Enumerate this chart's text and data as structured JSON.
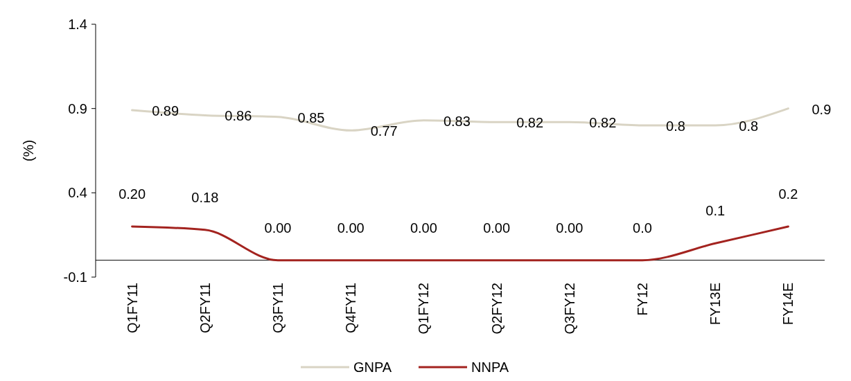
{
  "chart_data": {
    "type": "line",
    "ylabel": "(%)",
    "categories": [
      "Q1FY11",
      "Q2FY11",
      "Q3FY11",
      "Q4FY11",
      "Q1FY12",
      "Q2FY12",
      "Q3FY12",
      "FY12",
      "FY13E",
      "FY14E"
    ],
    "series": [
      {
        "name": "GNPA",
        "color": "#d9d4c4",
        "values": [
          0.89,
          0.86,
          0.85,
          0.77,
          0.83,
          0.82,
          0.82,
          0.8,
          0.8,
          0.9
        ],
        "value_labels": [
          "0.89",
          "0.86",
          "0.85",
          "0.77",
          "0.83",
          "0.82",
          "0.82",
          "0.8",
          "0.8",
          "0.9"
        ]
      },
      {
        "name": "NNPA",
        "color": "#a3231f",
        "values": [
          0.2,
          0.18,
          0,
          0,
          0,
          0,
          0,
          0,
          0.1,
          0.2
        ],
        "value_labels": [
          "0.20",
          "0.18",
          "0.00",
          "0.00",
          "0.00",
          "0.00",
          "0.00",
          "0.0",
          "0.1",
          "0.2"
        ]
      }
    ],
    "ylim": [
      -0.1,
      1.4
    ],
    "yticks": [
      -0.1,
      0.4,
      0.9,
      1.4
    ],
    "grid": false,
    "legend": "bottom",
    "marker": "none",
    "line_style": "solid"
  }
}
